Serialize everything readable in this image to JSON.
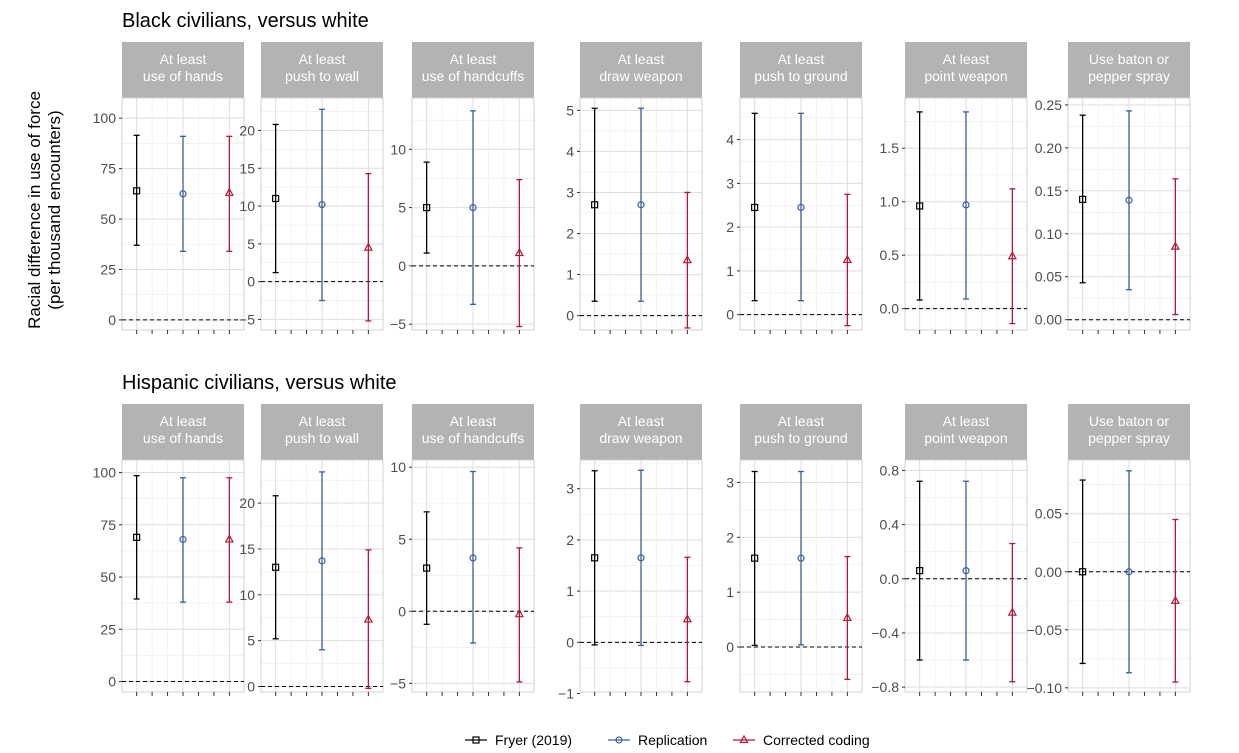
{
  "ylabel_line1": "Racial difference in use of force",
  "ylabel_line2": "(per thousand encounters)",
  "legend": [
    {
      "label": "Fryer (2019)",
      "color": "#000000",
      "shape": "square"
    },
    {
      "label": "Replication",
      "color": "#3a5f9a",
      "shape": "circle"
    },
    {
      "label": "Corrected coding",
      "color": "#b2183a",
      "shape": "triangle"
    }
  ],
  "strip_color": "#b3b3b3",
  "chart_data": [
    {
      "title": "Black civilians, versus white",
      "type": "errorbar",
      "panels": [
        {
          "label": [
            "At least",
            "use of hands"
          ],
          "ylim": [
            -5,
            110
          ],
          "ticks": [
            0,
            25,
            50,
            75,
            100
          ],
          "series": [
            {
              "name": "Fryer (2019)",
              "y": 64,
              "lo": 37,
              "hi": 91.5
            },
            {
              "name": "Replication",
              "y": 62.5,
              "lo": 34,
              "hi": 91
            },
            {
              "name": "Corrected coding",
              "y": 63,
              "lo": 34,
              "hi": 91
            }
          ]
        },
        {
          "label": [
            "At least",
            "push to wall"
          ],
          "ylim": [
            -6.4,
            24.3
          ],
          "ticks": [
            -5,
            0,
            5,
            10,
            15,
            20
          ],
          "series": [
            {
              "name": "Fryer (2019)",
              "y": 11,
              "lo": 1.2,
              "hi": 20.8
            },
            {
              "name": "Replication",
              "y": 10.2,
              "lo": -2.5,
              "hi": 22.8
            },
            {
              "name": "Corrected coding",
              "y": 4.5,
              "lo": -5.2,
              "hi": 14.3
            }
          ]
        },
        {
          "label": [
            "At least",
            "use of handcuffs"
          ],
          "ylim": [
            -5.5,
            14.4
          ],
          "ticks": [
            -5,
            0,
            5,
            10
          ],
          "series": [
            {
              "name": "Fryer (2019)",
              "y": 5,
              "lo": 1.1,
              "hi": 8.9
            },
            {
              "name": "Replication",
              "y": 5,
              "lo": -3.3,
              "hi": 13.3
            },
            {
              "name": "Corrected coding",
              "y": 1.1,
              "lo": -5.2,
              "hi": 7.4
            }
          ]
        },
        {
          "label": [
            "At least",
            "draw weapon"
          ],
          "ylim": [
            -0.35,
            5.3
          ],
          "ticks": [
            0,
            1,
            2,
            3,
            4,
            5
          ],
          "series": [
            {
              "name": "Fryer (2019)",
              "y": 2.7,
              "lo": 0.35,
              "hi": 5.05
            },
            {
              "name": "Replication",
              "y": 2.7,
              "lo": 0.35,
              "hi": 5.05
            },
            {
              "name": "Corrected coding",
              "y": 1.35,
              "lo": -0.3,
              "hi": 3.0
            }
          ]
        },
        {
          "label": [
            "At least",
            "push to ground"
          ],
          "ylim": [
            -0.35,
            4.95
          ],
          "ticks": [
            0,
            1,
            2,
            3,
            4
          ],
          "series": [
            {
              "name": "Fryer (2019)",
              "y": 2.45,
              "lo": 0.32,
              "hi": 4.6
            },
            {
              "name": "Replication",
              "y": 2.45,
              "lo": 0.32,
              "hi": 4.6
            },
            {
              "name": "Corrected coding",
              "y": 1.25,
              "lo": -0.25,
              "hi": 2.75
            }
          ]
        },
        {
          "label": [
            "At least",
            "point weapon"
          ],
          "ylim": [
            -0.2,
            1.97
          ],
          "ticks": [
            0.0,
            0.5,
            1.0,
            1.5
          ],
          "series": [
            {
              "name": "Fryer (2019)",
              "y": 0.96,
              "lo": 0.08,
              "hi": 1.84
            },
            {
              "name": "Replication",
              "y": 0.97,
              "lo": 0.09,
              "hi": 1.84
            },
            {
              "name": "Corrected coding",
              "y": 0.49,
              "lo": -0.14,
              "hi": 1.12
            }
          ]
        },
        {
          "label": [
            "Use baton or",
            "pepper spray"
          ],
          "ylim": [
            -0.012,
            0.258
          ],
          "ticks": [
            0.0,
            0.05,
            0.1,
            0.15,
            0.2,
            0.25
          ],
          "series": [
            {
              "name": "Fryer (2019)",
              "y": 0.14,
              "lo": 0.043,
              "hi": 0.238
            },
            {
              "name": "Replication",
              "y": 0.139,
              "lo": 0.035,
              "hi": 0.243
            },
            {
              "name": "Corrected coding",
              "y": 0.085,
              "lo": 0.006,
              "hi": 0.164
            }
          ]
        }
      ]
    },
    {
      "title": "Hispanic civilians, versus white",
      "type": "errorbar",
      "panels": [
        {
          "label": [
            "At least",
            "use of hands"
          ],
          "ylim": [
            -5,
            106
          ],
          "ticks": [
            0,
            25,
            50,
            75,
            100
          ],
          "series": [
            {
              "name": "Fryer (2019)",
              "y": 69,
              "lo": 39.5,
              "hi": 98.5
            },
            {
              "name": "Replication",
              "y": 68,
              "lo": 38,
              "hi": 97.5
            },
            {
              "name": "Corrected coding",
              "y": 68,
              "lo": 38,
              "hi": 97.5
            }
          ]
        },
        {
          "label": [
            "At least",
            "push to wall"
          ],
          "ylim": [
            -0.6,
            24.7
          ],
          "ticks": [
            0,
            5,
            10,
            15,
            20
          ],
          "series": [
            {
              "name": "Fryer (2019)",
              "y": 13,
              "lo": 5.2,
              "hi": 20.8
            },
            {
              "name": "Replication",
              "y": 13.7,
              "lo": 4,
              "hi": 23.4
            },
            {
              "name": "Corrected coding",
              "y": 7.3,
              "lo": -0.2,
              "hi": 14.9
            }
          ]
        },
        {
          "label": [
            "At least",
            "use of handcuffs"
          ],
          "ylim": [
            -5.6,
            10.5
          ],
          "ticks": [
            -5,
            0,
            5,
            10
          ],
          "series": [
            {
              "name": "Fryer (2019)",
              "y": 3,
              "lo": -0.9,
              "hi": 6.9
            },
            {
              "name": "Replication",
              "y": 3.7,
              "lo": -2.2,
              "hi": 9.7
            },
            {
              "name": "Corrected coding",
              "y": -0.2,
              "lo": -4.9,
              "hi": 4.4
            }
          ]
        },
        {
          "label": [
            "At least",
            "draw weapon"
          ],
          "ylim": [
            -0.97,
            3.56
          ],
          "ticks": [
            -1,
            0,
            1,
            2,
            3
          ],
          "series": [
            {
              "name": "Fryer (2019)",
              "y": 1.65,
              "lo": -0.05,
              "hi": 3.35
            },
            {
              "name": "Replication",
              "y": 1.65,
              "lo": -0.06,
              "hi": 3.36
            },
            {
              "name": "Corrected coding",
              "y": 0.45,
              "lo": -0.77,
              "hi": 1.66
            }
          ]
        },
        {
          "label": [
            "At least",
            "push to ground"
          ],
          "ylim": [
            -0.82,
            3.41
          ],
          "ticks": [
            0,
            1,
            2,
            3
          ],
          "series": [
            {
              "name": "Fryer (2019)",
              "y": 1.62,
              "lo": 0.03,
              "hi": 3.2
            },
            {
              "name": "Replication",
              "y": 1.62,
              "lo": 0.04,
              "hi": 3.2
            },
            {
              "name": "Corrected coding",
              "y": 0.53,
              "lo": -0.59,
              "hi": 1.65
            }
          ]
        },
        {
          "label": [
            "At least",
            "point weapon"
          ],
          "ylim": [
            -0.836,
            0.877
          ],
          "ticks": [
            -0.8,
            -0.4,
            0.0,
            0.4,
            0.8
          ],
          "series": [
            {
              "name": "Fryer (2019)",
              "y": 0.06,
              "lo": -0.6,
              "hi": 0.72
            },
            {
              "name": "Replication",
              "y": 0.06,
              "lo": -0.6,
              "hi": 0.72
            },
            {
              "name": "Corrected coding",
              "y": -0.25,
              "lo": -0.76,
              "hi": 0.26
            }
          ]
        },
        {
          "label": [
            "Use baton or",
            "pepper spray"
          ],
          "ylim": [
            -0.1036,
            0.0963
          ],
          "ticks": [
            -0.1,
            -0.05,
            0.0,
            0.05
          ],
          "series": [
            {
              "name": "Fryer (2019)",
              "y": 0.0,
              "lo": -0.079,
              "hi": 0.079
            },
            {
              "name": "Replication",
              "y": 0.0,
              "lo": -0.087,
              "hi": 0.087
            },
            {
              "name": "Corrected coding",
              "y": -0.025,
              "lo": -0.095,
              "hi": 0.045
            }
          ]
        }
      ]
    }
  ]
}
